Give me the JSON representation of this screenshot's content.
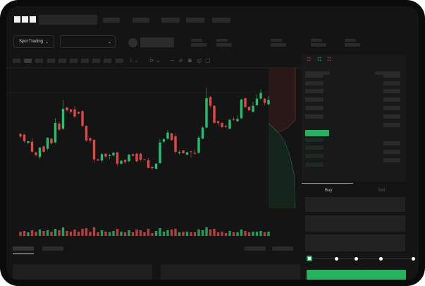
{
  "header": {
    "logo": "OKX",
    "nav_count": 5
  },
  "toolbar": {
    "trading_mode": "Spot Trading",
    "pair_select": ""
  },
  "chart_data": {
    "type": "candlestick",
    "title": "",
    "grid": false,
    "colors": {
      "up": "#23c16b",
      "down": "#e04848"
    },
    "candles": [
      [
        45.6,
        42.8,
        47,
        41
      ],
      [
        44.9,
        37.7,
        46,
        36
      ],
      [
        35.9,
        37.7,
        38,
        35
      ],
      [
        37.2,
        26.2,
        41,
        25
      ],
      [
        25.6,
        22.6,
        26,
        21
      ],
      [
        20.5,
        30.8,
        31,
        18
      ],
      [
        32,
        26.2,
        33,
        25
      ],
      [
        29.5,
        41.5,
        42,
        28
      ],
      [
        40.5,
        35.4,
        41,
        34
      ],
      [
        36.4,
        57.7,
        63,
        35
      ],
      [
        56.9,
        50.3,
        59,
        49
      ],
      [
        51.3,
        73.1,
        83,
        50
      ],
      [
        74.4,
        71.3,
        75,
        70
      ],
      [
        72.3,
        69.7,
        73,
        68
      ],
      [
        72.3,
        64.6,
        76,
        63
      ],
      [
        69.7,
        67.9,
        70,
        67
      ],
      [
        70.5,
        54.4,
        72,
        53
      ],
      [
        54.4,
        38.5,
        55,
        37
      ],
      [
        41,
        38.5,
        42,
        36
      ],
      [
        39.2,
        17.9,
        40,
        14
      ],
      [
        17.9,
        16.7,
        19,
        16
      ],
      [
        16.7,
        23.6,
        25,
        15
      ],
      [
        24.1,
        21,
        25,
        19
      ],
      [
        21.8,
        22.3,
        24,
        18
      ],
      [
        22.3,
        25.1,
        26,
        21
      ],
      [
        25.6,
        13.3,
        26,
        11
      ],
      [
        13.3,
        16.4,
        17,
        12
      ],
      [
        17.4,
        14.9,
        18,
        13
      ],
      [
        15.9,
        23.1,
        24,
        15
      ],
      [
        23.6,
        21.8,
        24,
        21
      ],
      [
        24.1,
        15.9,
        25,
        15
      ],
      [
        24.1,
        17.4,
        25,
        16
      ],
      [
        17.9,
        17.4,
        18,
        17
      ],
      [
        17.2,
        8.7,
        19,
        8
      ],
      [
        9.7,
        8.2,
        10,
        7
      ],
      [
        7.7,
        13.3,
        14,
        7
      ],
      [
        13.8,
        36.4,
        40,
        13
      ],
      [
        37.2,
        40,
        41,
        36
      ],
      [
        40.5,
        47.2,
        50,
        39
      ],
      [
        46.2,
        39,
        47,
        38
      ],
      [
        43,
        26.2,
        46,
        24
      ],
      [
        25.1,
        26.2,
        28,
        23
      ],
      [
        27.7,
        24.6,
        28,
        24
      ],
      [
        23.1,
        25.6,
        26,
        22
      ],
      [
        26.7,
        26.2,
        27,
        20
      ],
      [
        25.1,
        24.1,
        29,
        23
      ],
      [
        25.1,
        41.5,
        44,
        24
      ],
      [
        40.5,
        52.6,
        54,
        40
      ],
      [
        52.6,
        84.6,
        96,
        52
      ],
      [
        85.9,
        76.4,
        87,
        74
      ],
      [
        76.4,
        57.7,
        77,
        57
      ],
      [
        59.5,
        57.7,
        60,
        54
      ],
      [
        57.7,
        53.1,
        58,
        52
      ],
      [
        54.4,
        53.3,
        56,
        52
      ],
      [
        51.3,
        61,
        62,
        51
      ],
      [
        62,
        61,
        64,
        60
      ],
      [
        59.5,
        62,
        66,
        59
      ],
      [
        62.8,
        83.1,
        84,
        62
      ],
      [
        84.6,
        74.9,
        85,
        74
      ],
      [
        75.1,
        71.3,
        76,
        71
      ],
      [
        69.7,
        76.4,
        81,
        69
      ],
      [
        77,
        84.1,
        89,
        76
      ],
      [
        84.1,
        90.3,
        94,
        83
      ],
      [
        84.1,
        79.5,
        85,
        77
      ],
      [
        77.9,
        82.6,
        87,
        77
      ]
    ],
    "volume": [
      6,
      7,
      5,
      8,
      6,
      9,
      7,
      8,
      6,
      10,
      8,
      12,
      7,
      6,
      9,
      6,
      10,
      11,
      6,
      12,
      5,
      8,
      6,
      5,
      7,
      10,
      6,
      5,
      8,
      5,
      9,
      8,
      5,
      10,
      4,
      7,
      11,
      6,
      8,
      9,
      10,
      5,
      6,
      6,
      5,
      5,
      9,
      8,
      12,
      9,
      10,
      5,
      6,
      4,
      7,
      5,
      5,
      9,
      7,
      5,
      6,
      6,
      7,
      5,
      6
    ]
  },
  "order_book": {
    "view_icons": [
      "book-both-icon",
      "book-bids-icon",
      "book-asks-icon"
    ]
  },
  "trade_panel": {
    "tabs": [
      {
        "label": "Buy",
        "active": true
      },
      {
        "label": "Sell",
        "active": false
      }
    ],
    "slider_percent": 0,
    "accent": "#23b35e"
  }
}
